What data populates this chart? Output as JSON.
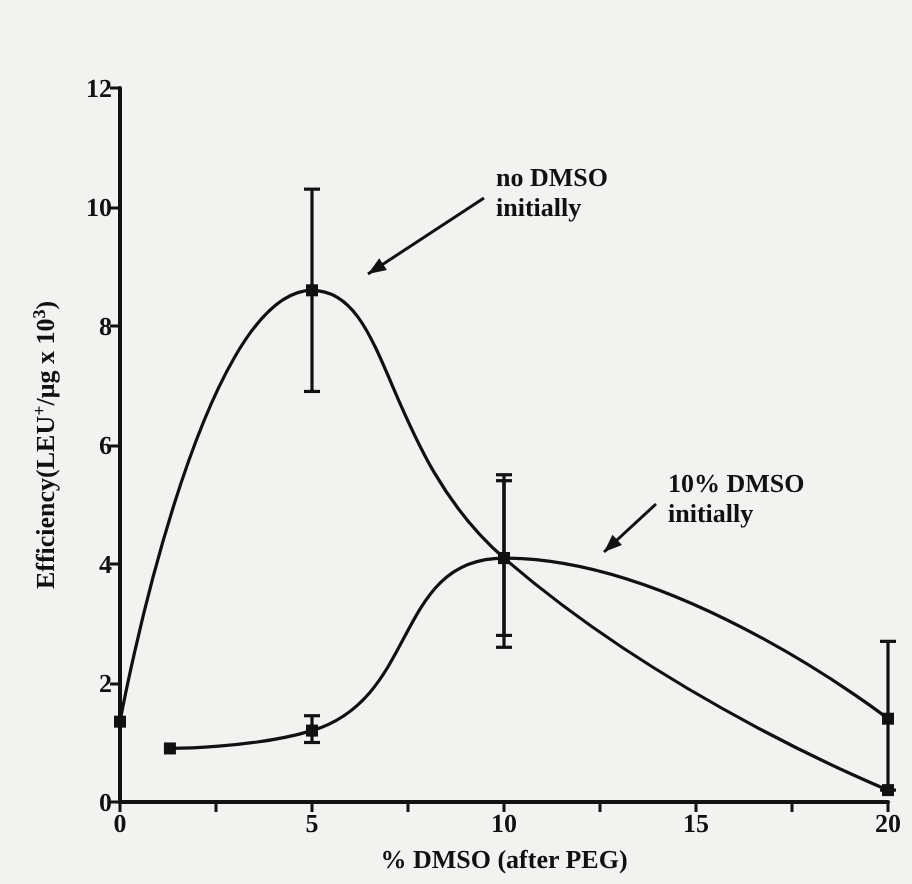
{
  "chart_data": {
    "type": "line",
    "xlabel": "% DMSO (after PEG)",
    "ylabel": "Efficiency(LEU$^{+}$/μg x 10$^{3}$)",
    "xlim": [
      0,
      20
    ],
    "xticks": [
      0,
      {
        "value": 2.5,
        "label": null
      },
      5,
      {
        "value": 7.5,
        "label": null
      },
      10,
      {
        "value": 12.5,
        "label": null
      },
      15,
      {
        "value": 17.5,
        "label": null
      },
      20
    ],
    "ylim": [
      0,
      12
    ],
    "yticks": [
      0,
      2,
      4,
      6,
      8,
      10,
      12
    ],
    "grid": false,
    "marker": "square",
    "series": [
      {
        "name": "no DMSO initially",
        "color": "#111111",
        "x": [
          0,
          5,
          10,
          20
        ],
        "values": [
          1.35,
          8.6,
          4.1,
          0.2
        ],
        "errors": [
          null,
          [
            6.9,
            10.3
          ],
          [
            2.6,
            5.5
          ],
          null
        ]
      },
      {
        "name": "10% DMSO initially",
        "color": "#111111",
        "x": [
          1.3,
          5,
          10,
          20
        ],
        "values": [
          0.9,
          1.2,
          4.1,
          1.4
        ],
        "errors": [
          null,
          [
            1.0,
            1.45
          ],
          [
            2.8,
            5.4
          ],
          [
            0.2,
            2.7
          ]
        ]
      }
    ]
  }
}
